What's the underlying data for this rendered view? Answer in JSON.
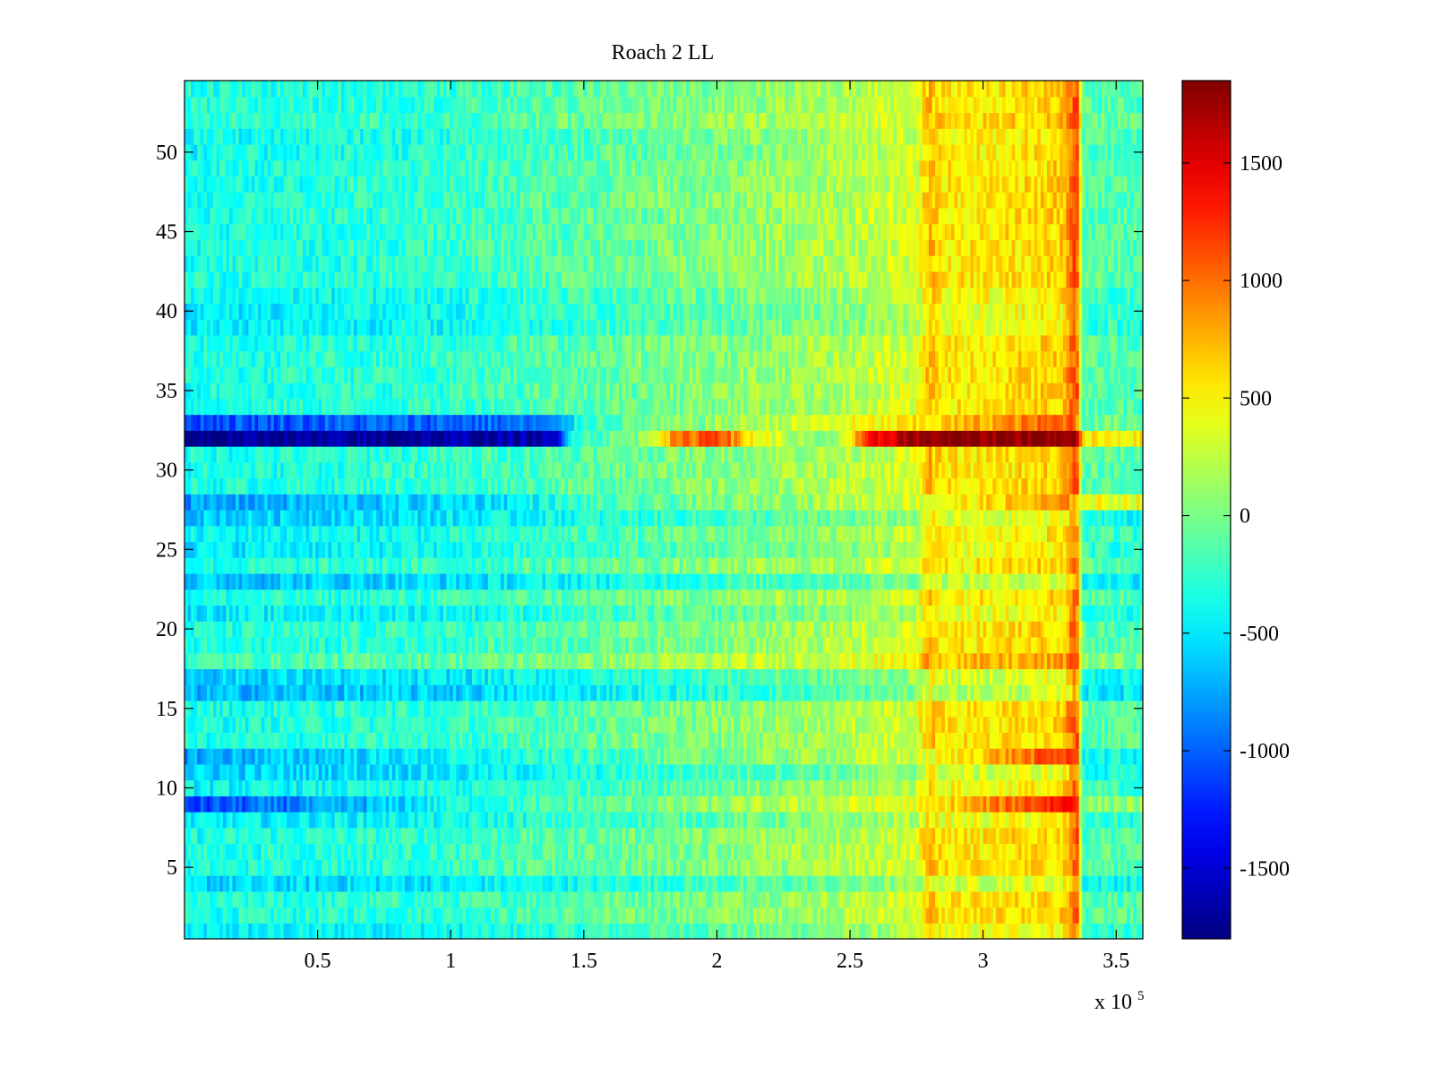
{
  "chart_data": {
    "type": "heatmap",
    "title": "Roach 2 LL",
    "xlabel": "",
    "ylabel": "",
    "x_exponent_label": {
      "base": "x 10",
      "exponent": "5"
    },
    "x_range": [
      0,
      360000
    ],
    "y_range": [
      0.5,
      54.5
    ],
    "x_ticks": [
      {
        "value": 50000,
        "label": "0.5"
      },
      {
        "value": 100000,
        "label": "1"
      },
      {
        "value": 150000,
        "label": "1.5"
      },
      {
        "value": 200000,
        "label": "2"
      },
      {
        "value": 250000,
        "label": "2.5"
      },
      {
        "value": 300000,
        "label": "3"
      },
      {
        "value": 350000,
        "label": "3.5"
      }
    ],
    "y_ticks": [
      {
        "value": 5,
        "label": "5"
      },
      {
        "value": 10,
        "label": "10"
      },
      {
        "value": 15,
        "label": "15"
      },
      {
        "value": 20,
        "label": "20"
      },
      {
        "value": 25,
        "label": "25"
      },
      {
        "value": 30,
        "label": "30"
      },
      {
        "value": 35,
        "label": "35"
      },
      {
        "value": 40,
        "label": "40"
      },
      {
        "value": 45,
        "label": "45"
      },
      {
        "value": 50,
        "label": "50"
      }
    ],
    "colorbar": {
      "colormap": "jet",
      "range": [
        -1800,
        1850
      ],
      "ticks": [
        {
          "value": -1500,
          "label": "-1500"
        },
        {
          "value": -1000,
          "label": "-1000"
        },
        {
          "value": -500,
          "label": "-500"
        },
        {
          "value": 0,
          "label": "0"
        },
        {
          "value": 500,
          "label": "500"
        },
        {
          "value": 1000,
          "label": "1000"
        },
        {
          "value": 1500,
          "label": "1500"
        }
      ]
    },
    "grid": false,
    "rows": 54,
    "x_profile_breakpoints": [
      0,
      50000,
      100000,
      150000,
      200000,
      250000,
      275000,
      280000,
      285000,
      300000,
      330000,
      334000,
      336000,
      337000,
      360000
    ],
    "x_profile_values": [
      -350,
      -300,
      -250,
      -100,
      50,
      200,
      350,
      750,
      550,
      550,
      650,
      1050,
      1050,
      -100,
      -150
    ],
    "row_anomalies": [
      {
        "row": 32,
        "breakpoints": [
          0,
          140000,
          145000,
          170000,
          180000,
          200000,
          210000,
          240000,
          250000,
          260000,
          275000,
          335000,
          337000,
          360000
        ],
        "values": [
          -1750,
          -1650,
          -200,
          0,
          700,
          1300,
          600,
          -100,
          500,
          1400,
          1800,
          1850,
          600,
          500
        ]
      },
      {
        "row": 33,
        "breakpoints": [
          0,
          140000,
          150000,
          275000,
          335000,
          337000,
          360000
        ],
        "values": [
          -1050,
          -950,
          -200,
          550,
          1100,
          -50,
          0
        ]
      },
      {
        "row": 9,
        "breakpoints": [
          0,
          40000,
          80000,
          100000,
          275000,
          335000,
          337000,
          360000
        ],
        "values": [
          -1150,
          -900,
          -600,
          -350,
          400,
          1450,
          50,
          100
        ]
      },
      {
        "row": 28,
        "breakpoints": [
          0,
          120000,
          150000,
          275000,
          335000,
          337000,
          360000
        ],
        "values": [
          -800,
          -500,
          -250,
          350,
          850,
          400,
          450
        ]
      },
      {
        "row": 12,
        "breakpoints": [
          0,
          100000,
          275000,
          335000,
          337000,
          360000
        ],
        "values": [
          -750,
          -450,
          300,
          1250,
          -350,
          -400
        ]
      }
    ],
    "row_offsets": {
      "1": -150,
      "4": -250,
      "8": -150,
      "10": -100,
      "11": -250,
      "16": -350,
      "17": -250,
      "18": 150,
      "21": -150,
      "23": -300,
      "25": -150,
      "26": -100,
      "27": -250,
      "39": -150,
      "40": -150,
      "41": -100,
      "50": -50,
      "51": -50,
      "52": 50
    }
  }
}
